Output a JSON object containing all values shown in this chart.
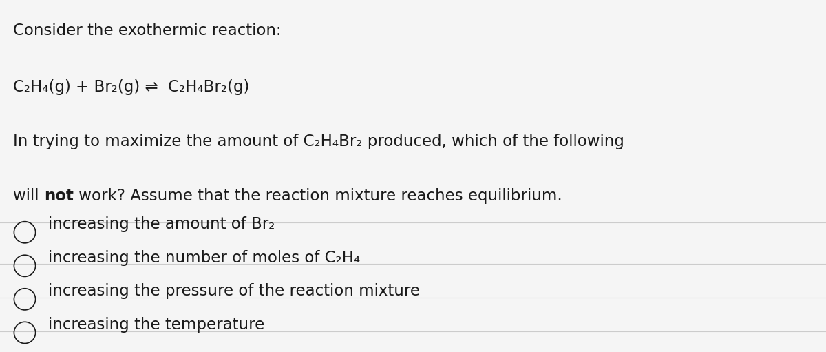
{
  "background_color": "#f5f5f5",
  "text_color": "#1a1a1a",
  "options": [
    "increasing the amount of Br₂",
    "increasing the number of moles of C₂H₄",
    "increasing the pressure of the reaction mixture",
    "increasing the temperature"
  ],
  "font_size": 16.5,
  "divider_color": "#cccccc",
  "line1": "Consider the exothermic reaction:",
  "line2": "C₂H₄(g) + Br₂(g) ⇌  C₂H₄Br₂(g)",
  "line3": "In trying to maximize the amount of C₂H₄Br₂ produced, which of the following",
  "line4_pre": "will ",
  "line4_bold": "not",
  "line4_post": " work? Assume that the reaction mixture reaches equilibrium."
}
